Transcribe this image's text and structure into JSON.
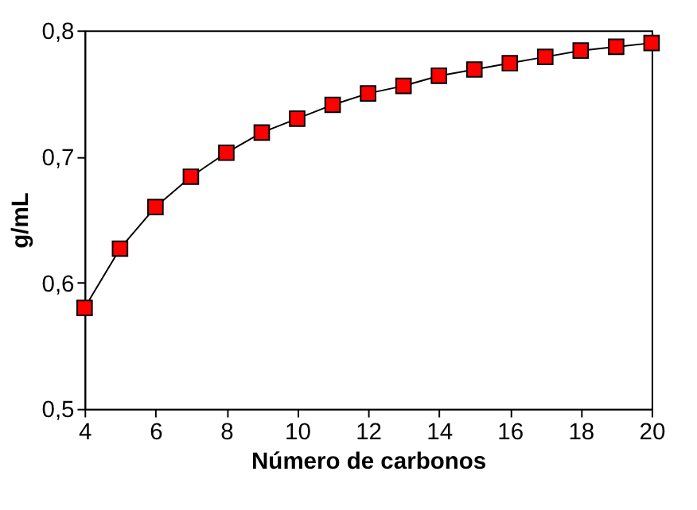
{
  "chart_data": {
    "type": "line",
    "xlabel": "Número de carbonos",
    "ylabel": "g/mL",
    "x": [
      4,
      5,
      6,
      7,
      8,
      9,
      10,
      11,
      12,
      13,
      14,
      15,
      16,
      17,
      18,
      19,
      20
    ],
    "series": [
      {
        "color": "#ff0000",
        "values": [
          0.58,
          0.627,
          0.66,
          0.684,
          0.703,
          0.719,
          0.73,
          0.741,
          0.75,
          0.756,
          0.764,
          0.769,
          0.774,
          0.779,
          0.784,
          0.787,
          0.79
        ]
      }
    ],
    "xlim": [
      4,
      20
    ],
    "xticks": [
      4,
      6,
      8,
      10,
      12,
      14,
      16,
      18,
      20
    ],
    "ylim": [
      0.5,
      0.8
    ],
    "yticks": [
      {
        "value": 0.5,
        "label": "0,5"
      },
      {
        "value": 0.6,
        "label": "0,6"
      },
      {
        "value": 0.7,
        "label": "0,7"
      },
      {
        "value": 0.8,
        "label": "0,8"
      }
    ],
    "grid": false,
    "marker": "square",
    "line_style": "solid"
  }
}
